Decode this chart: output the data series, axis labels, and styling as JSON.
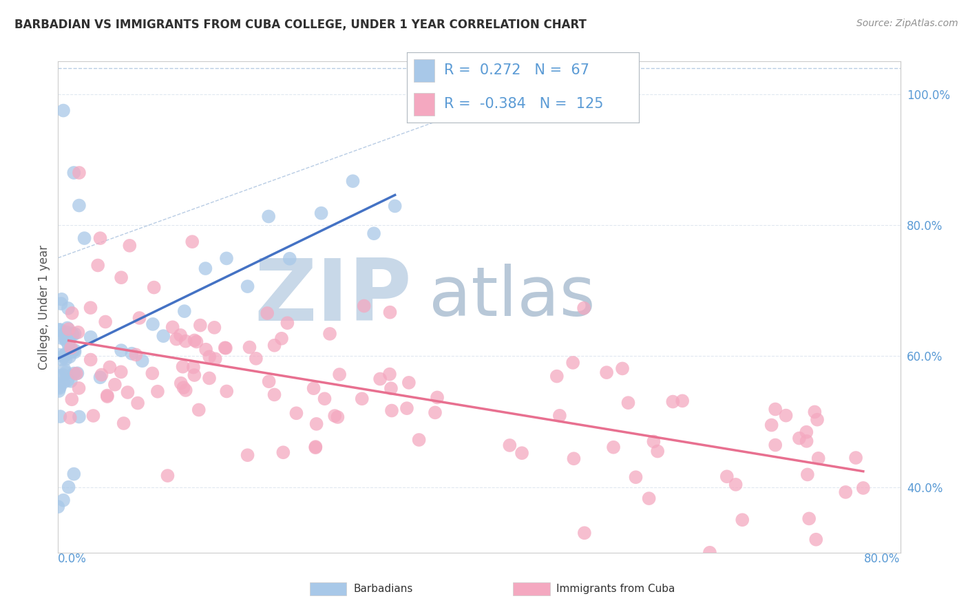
{
  "title": "BARBADIAN VS IMMIGRANTS FROM CUBA COLLEGE, UNDER 1 YEAR CORRELATION CHART",
  "source": "Source: ZipAtlas.com",
  "ylabel": "College, Under 1 year",
  "right_yticks": [
    "100.0%",
    "80.0%",
    "60.0%",
    "40.0%"
  ],
  "right_ytick_vals": [
    1.0,
    0.8,
    0.6,
    0.4
  ],
  "xlim": [
    0.0,
    0.8
  ],
  "ylim": [
    0.3,
    1.05
  ],
  "legend_r_blue": "0.272",
  "legend_n_blue": "67",
  "legend_r_pink": "-0.384",
  "legend_n_pink": "125",
  "blue_color": "#a8c8e8",
  "pink_color": "#f4a8c0",
  "trend_blue": "#4472c4",
  "trend_pink": "#e87090",
  "dashed_line_color": "#b8cce4",
  "watermark_zip": "ZIP",
  "watermark_atlas": "atlas",
  "watermark_color_zip": "#c8d8e8",
  "watermark_color_atlas": "#b8c8d8",
  "background_color": "#ffffff",
  "grid_color": "#e0e8f0",
  "title_color": "#303030",
  "source_color": "#909090",
  "axis_label_color": "#555555",
  "tick_label_color": "#5b9bd5",
  "legend_text_color": "#5b9bd5",
  "bottom_legend_text_color": "#333333"
}
